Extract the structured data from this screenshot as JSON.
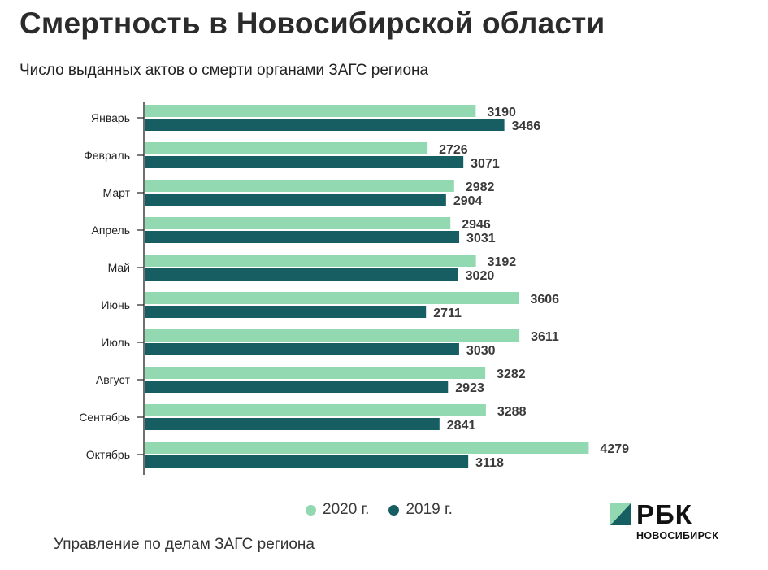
{
  "header": {
    "title": "Смертность в Новосибирской области",
    "subtitle": "Число выданных актов о смерти органами ЗАГС региона"
  },
  "chart_data": {
    "type": "bar",
    "orientation": "horizontal",
    "categories": [
      "Январь",
      "Февраль",
      "Март",
      "Апрель",
      "Май",
      "Июнь",
      "Июль",
      "Август",
      "Сентябрь",
      "Октябрь"
    ],
    "series": [
      {
        "name": "2020 г.",
        "color": "#92d8b0",
        "values": [
          3190,
          2726,
          2982,
          2946,
          3192,
          3606,
          3611,
          3282,
          3288,
          4279
        ]
      },
      {
        "name": "2019 г.",
        "color": "#175e62",
        "values": [
          3466,
          3071,
          2904,
          3031,
          3020,
          2711,
          3030,
          2923,
          2841,
          3118
        ]
      }
    ],
    "legend_position": "bottom",
    "grid": false,
    "data_labels": true
  },
  "legend": {
    "items": [
      {
        "label": "2020 г.",
        "color": "#92d8b0"
      },
      {
        "label": "2019 г.",
        "color": "#175e62"
      }
    ]
  },
  "footer": {
    "source": "Управление по делам ЗАГС региона"
  },
  "logo": {
    "name": "РБК",
    "sub": "НОВОСИБИРСК",
    "color_light": "#92d8b0",
    "color_dark": "#175e62"
  }
}
